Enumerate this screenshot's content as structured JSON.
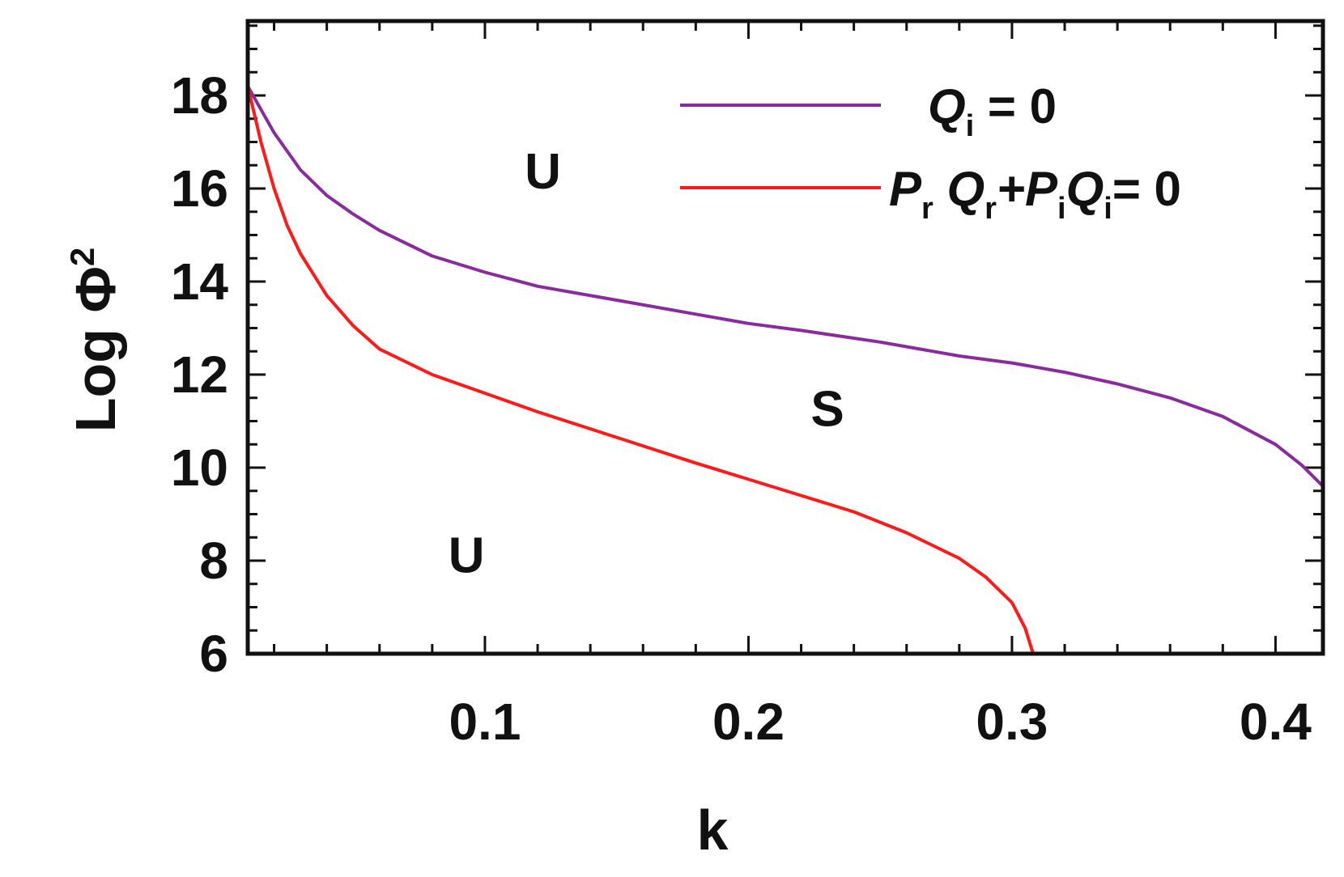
{
  "chart_data": {
    "type": "line",
    "title": "",
    "xlabel": "k",
    "ylabel": "Log Φ",
    "ylabel_sup": "2",
    "xlim": [
      0.01,
      0.418
    ],
    "ylim": [
      6,
      19.6
    ],
    "x_ticks": [
      {
        "value": 0.1,
        "label": "0.1"
      },
      {
        "value": 0.2,
        "label": "0.2"
      },
      {
        "value": 0.3,
        "label": "0.3"
      },
      {
        "value": 0.4,
        "label": "0.4"
      }
    ],
    "y_ticks": [
      {
        "value": 6,
        "label": "6"
      },
      {
        "value": 8,
        "label": "8"
      },
      {
        "value": 10,
        "label": "10"
      },
      {
        "value": 12,
        "label": "12"
      },
      {
        "value": 14,
        "label": "14"
      },
      {
        "value": 16,
        "label": "16"
      },
      {
        "value": 18,
        "label": "18"
      }
    ],
    "legend_position": "top-right",
    "grid": false,
    "series": [
      {
        "name": "Q_i = 0",
        "color": "#8b2a9e",
        "points": [
          [
            0.01,
            18.2
          ],
          [
            0.02,
            17.2
          ],
          [
            0.03,
            16.4
          ],
          [
            0.04,
            15.85
          ],
          [
            0.05,
            15.45
          ],
          [
            0.06,
            15.1
          ],
          [
            0.08,
            14.55
          ],
          [
            0.1,
            14.2
          ],
          [
            0.12,
            13.9
          ],
          [
            0.15,
            13.6
          ],
          [
            0.18,
            13.3
          ],
          [
            0.2,
            13.1
          ],
          [
            0.22,
            12.95
          ],
          [
            0.25,
            12.7
          ],
          [
            0.28,
            12.4
          ],
          [
            0.3,
            12.25
          ],
          [
            0.32,
            12.05
          ],
          [
            0.34,
            11.8
          ],
          [
            0.36,
            11.5
          ],
          [
            0.38,
            11.1
          ],
          [
            0.4,
            10.5
          ],
          [
            0.41,
            10.05
          ],
          [
            0.418,
            9.6
          ]
        ]
      },
      {
        "name": "P_r Q_r + P_i Q_i = 0",
        "color": "#ff1a1a",
        "points": [
          [
            0.01,
            18.2
          ],
          [
            0.015,
            17.0
          ],
          [
            0.02,
            16.0
          ],
          [
            0.025,
            15.2
          ],
          [
            0.03,
            14.6
          ],
          [
            0.04,
            13.7
          ],
          [
            0.05,
            13.05
          ],
          [
            0.06,
            12.55
          ],
          [
            0.08,
            12.0
          ],
          [
            0.1,
            11.6
          ],
          [
            0.12,
            11.2
          ],
          [
            0.15,
            10.65
          ],
          [
            0.18,
            10.1
          ],
          [
            0.2,
            9.75
          ],
          [
            0.22,
            9.4
          ],
          [
            0.24,
            9.05
          ],
          [
            0.26,
            8.6
          ],
          [
            0.28,
            8.05
          ],
          [
            0.29,
            7.65
          ],
          [
            0.3,
            7.1
          ],
          [
            0.305,
            6.55
          ],
          [
            0.308,
            6.0
          ]
        ]
      }
    ],
    "legend": [
      {
        "line_color": "#8b2a9e",
        "parts": [
          {
            "text": "Q",
            "style": "it"
          },
          {
            "text": "i",
            "style": "sub"
          },
          {
            "text": " = 0",
            "style": ""
          }
        ]
      },
      {
        "line_color": "#ff1a1a",
        "parts": [
          {
            "text": "P",
            "style": "it"
          },
          {
            "text": "r",
            "style": "sub"
          },
          {
            "text": " Q",
            "style": "it"
          },
          {
            "text": "r",
            "style": "sub"
          },
          {
            "text": "+P",
            "style": "it"
          },
          {
            "text": "i",
            "style": "sub"
          },
          {
            "text": "Q",
            "style": "it"
          },
          {
            "text": "i",
            "style": "sub"
          },
          {
            "text": "= 0",
            "style": ""
          }
        ]
      }
    ],
    "annotations": [
      {
        "text": "U",
        "x": 0.122,
        "y": 16.0
      },
      {
        "text": "S",
        "x": 0.23,
        "y": 10.9
      },
      {
        "text": "U",
        "x": 0.093,
        "y": 7.75
      }
    ]
  }
}
